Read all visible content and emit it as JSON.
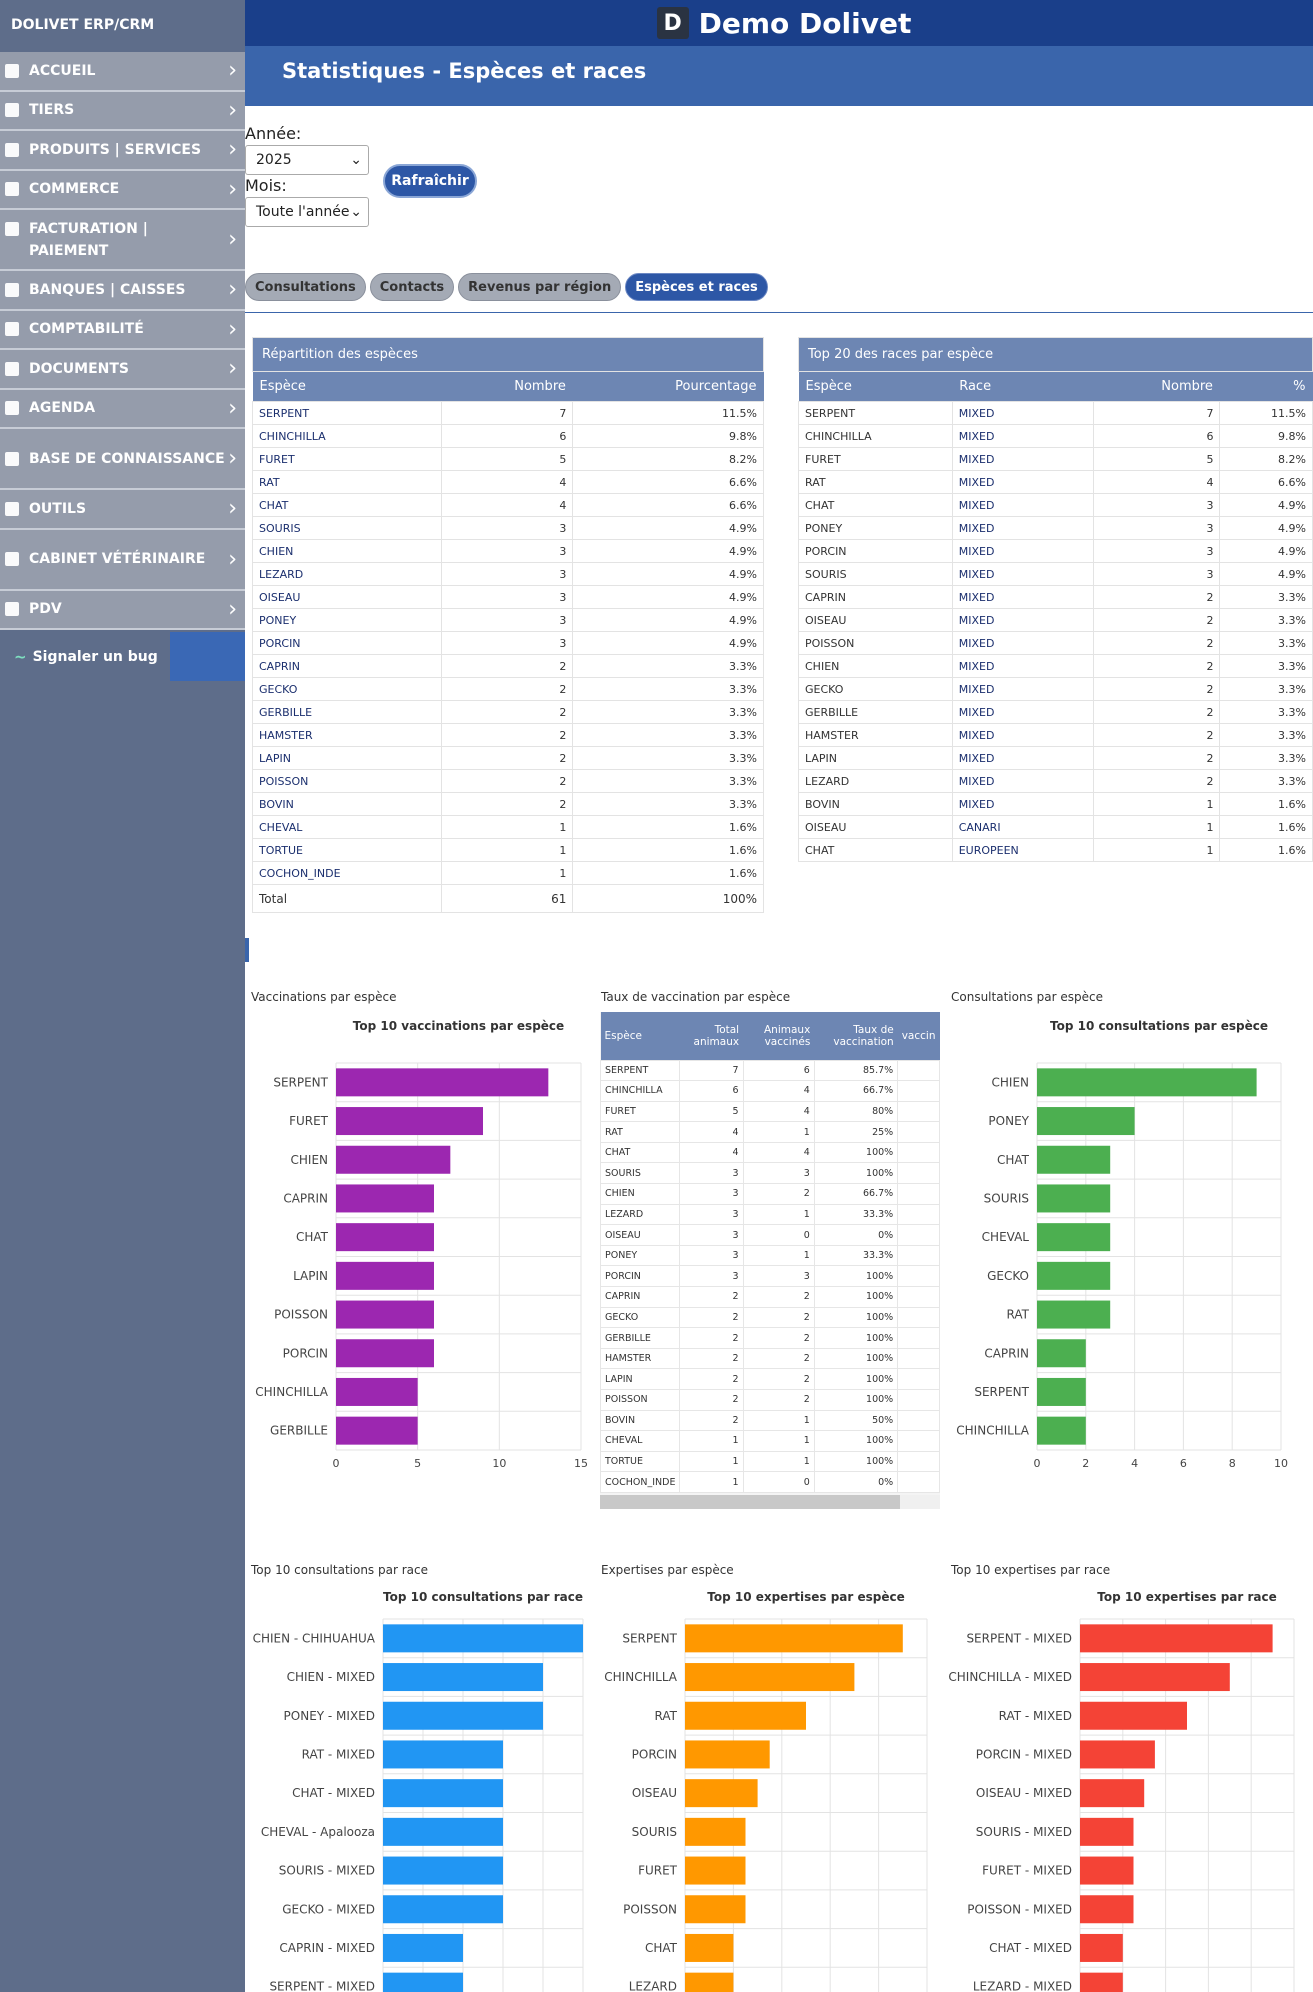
{
  "sidebar": {
    "brand": "DOLIVET ERP/CRM",
    "items": [
      {
        "label": "ACCUEIL",
        "icon": "home-icon"
      },
      {
        "label": "TIERS",
        "icon": "building-icon"
      },
      {
        "label": "PRODUITS | SERVICES",
        "icon": "cube-icon"
      },
      {
        "label": "COMMERCE",
        "icon": "suitcase-icon"
      },
      {
        "label": "FACTURATION | PAIEMENT",
        "icon": "invoice-icon",
        "tall": true
      },
      {
        "label": "BANQUES | CAISSES",
        "icon": "bank-icon"
      },
      {
        "label": "COMPTABILITÉ",
        "icon": "search-dollar-icon"
      },
      {
        "label": "DOCUMENTS",
        "icon": "folder-icon"
      },
      {
        "label": "AGENDA",
        "icon": "calendar-icon"
      },
      {
        "label": "BASE DE CONNAISSANCE",
        "icon": "book-icon",
        "tall": true
      },
      {
        "label": "OUTILS",
        "icon": "tools-icon"
      },
      {
        "label": "CABINET VÉTÉRINAIRE",
        "icon": "dog-icon",
        "tall": true
      },
      {
        "label": "PDV",
        "icon": "cash-register-icon"
      }
    ],
    "bug": "Signaler un bug"
  },
  "header": {
    "app_title": "Demo Dolivet",
    "page_title": "Statistiques - Espèces et races"
  },
  "filters": {
    "year_label": "Année:",
    "year_value": "2025",
    "month_label": "Mois:",
    "month_value": "Toute l'année",
    "refresh": "Rafraîchir"
  },
  "tabs": [
    "Consultations",
    "Contacts",
    "Revenus par région",
    "Espèces et races"
  ],
  "species_table": {
    "caption": "Répartition des espèces",
    "headers": [
      "Espèce",
      "Nombre",
      "Pourcentage"
    ],
    "rows": [
      [
        "SERPENT",
        "7",
        "11.5%"
      ],
      [
        "CHINCHILLA",
        "6",
        "9.8%"
      ],
      [
        "FURET",
        "5",
        "8.2%"
      ],
      [
        "RAT",
        "4",
        "6.6%"
      ],
      [
        "CHAT",
        "4",
        "6.6%"
      ],
      [
        "SOURIS",
        "3",
        "4.9%"
      ],
      [
        "CHIEN",
        "3",
        "4.9%"
      ],
      [
        "LEZARD",
        "3",
        "4.9%"
      ],
      [
        "OISEAU",
        "3",
        "4.9%"
      ],
      [
        "PONEY",
        "3",
        "4.9%"
      ],
      [
        "PORCIN",
        "3",
        "4.9%"
      ],
      [
        "CAPRIN",
        "2",
        "3.3%"
      ],
      [
        "GECKO",
        "2",
        "3.3%"
      ],
      [
        "GERBILLE",
        "2",
        "3.3%"
      ],
      [
        "HAMSTER",
        "2",
        "3.3%"
      ],
      [
        "LAPIN",
        "2",
        "3.3%"
      ],
      [
        "POISSON",
        "2",
        "3.3%"
      ],
      [
        "BOVIN",
        "2",
        "3.3%"
      ],
      [
        "CHEVAL",
        "1",
        "1.6%"
      ],
      [
        "TORTUE",
        "1",
        "1.6%"
      ],
      [
        "COCHON_INDE",
        "1",
        "1.6%"
      ]
    ],
    "total": [
      "Total",
      "61",
      "100%"
    ]
  },
  "races_table": {
    "caption": "Top 20 des races par espèce",
    "headers": [
      "Espèce",
      "Race",
      "Nombre",
      "%"
    ],
    "rows": [
      [
        "SERPENT",
        "MIXED",
        "7",
        "11.5%"
      ],
      [
        "CHINCHILLA",
        "MIXED",
        "6",
        "9.8%"
      ],
      [
        "FURET",
        "MIXED",
        "5",
        "8.2%"
      ],
      [
        "RAT",
        "MIXED",
        "4",
        "6.6%"
      ],
      [
        "CHAT",
        "MIXED",
        "3",
        "4.9%"
      ],
      [
        "PONEY",
        "MIXED",
        "3",
        "4.9%"
      ],
      [
        "PORCIN",
        "MIXED",
        "3",
        "4.9%"
      ],
      [
        "SOURIS",
        "MIXED",
        "3",
        "4.9%"
      ],
      [
        "CAPRIN",
        "MIXED",
        "2",
        "3.3%"
      ],
      [
        "OISEAU",
        "MIXED",
        "2",
        "3.3%"
      ],
      [
        "POISSON",
        "MIXED",
        "2",
        "3.3%"
      ],
      [
        "CHIEN",
        "MIXED",
        "2",
        "3.3%"
      ],
      [
        "GECKO",
        "MIXED",
        "2",
        "3.3%"
      ],
      [
        "GERBILLE",
        "MIXED",
        "2",
        "3.3%"
      ],
      [
        "HAMSTER",
        "MIXED",
        "2",
        "3.3%"
      ],
      [
        "LAPIN",
        "MIXED",
        "2",
        "3.3%"
      ],
      [
        "LEZARD",
        "MIXED",
        "2",
        "3.3%"
      ],
      [
        "BOVIN",
        "MIXED",
        "1",
        "1.6%"
      ],
      [
        "OISEAU",
        "CANARI",
        "1",
        "1.6%"
      ],
      [
        "CHAT",
        "EUROPEEN",
        "1",
        "1.6%"
      ]
    ]
  },
  "panels": {
    "vacc": "Vaccinations par espèce",
    "vrate": "Taux de vaccination par espèce",
    "consult": "Consultations par espèce",
    "consult_race": "Top 10 consultations par race",
    "exp_species": "Expertises par espèce",
    "exp_race": "Top 10 expertises par race"
  },
  "vacc_table": {
    "headers": [
      "Espèce",
      "Total animaux",
      "Animaux vaccinés",
      "Taux de vaccination",
      "vaccin"
    ],
    "rows": [
      [
        "SERPENT",
        "7",
        "6",
        "85.7%"
      ],
      [
        "CHINCHILLA",
        "6",
        "4",
        "66.7%"
      ],
      [
        "FURET",
        "5",
        "4",
        "80%"
      ],
      [
        "RAT",
        "4",
        "1",
        "25%"
      ],
      [
        "CHAT",
        "4",
        "4",
        "100%"
      ],
      [
        "SOURIS",
        "3",
        "3",
        "100%"
      ],
      [
        "CHIEN",
        "3",
        "2",
        "66.7%"
      ],
      [
        "LEZARD",
        "3",
        "1",
        "33.3%"
      ],
      [
        "OISEAU",
        "3",
        "0",
        "0%"
      ],
      [
        "PONEY",
        "3",
        "1",
        "33.3%"
      ],
      [
        "PORCIN",
        "3",
        "3",
        "100%"
      ],
      [
        "CAPRIN",
        "2",
        "2",
        "100%"
      ],
      [
        "GECKO",
        "2",
        "2",
        "100%"
      ],
      [
        "GERBILLE",
        "2",
        "2",
        "100%"
      ],
      [
        "HAMSTER",
        "2",
        "2",
        "100%"
      ],
      [
        "LAPIN",
        "2",
        "2",
        "100%"
      ],
      [
        "POISSON",
        "2",
        "2",
        "100%"
      ],
      [
        "BOVIN",
        "2",
        "1",
        "50%"
      ],
      [
        "CHEVAL",
        "1",
        "1",
        "100%"
      ],
      [
        "TORTUE",
        "1",
        "1",
        "100%"
      ],
      [
        "COCHON_INDE",
        "1",
        "0",
        "0%"
      ]
    ]
  },
  "chart_data": [
    {
      "type": "bar",
      "orientation": "horizontal",
      "title": "Top 10 vaccinations par espèce",
      "color": "#9c27b0",
      "categories": [
        "SERPENT",
        "FURET",
        "CHIEN",
        "CAPRIN",
        "CHAT",
        "LAPIN",
        "POISSON",
        "PORCIN",
        "CHINCHILLA",
        "GERBILLE"
      ],
      "values": [
        13,
        9,
        7,
        6,
        6,
        6,
        6,
        6,
        5,
        5
      ],
      "xlim": [
        0,
        15
      ],
      "ticks": [
        0,
        5,
        10,
        15
      ]
    },
    {
      "type": "bar",
      "orientation": "horizontal",
      "title": "Top 10 consultations par espèce",
      "color": "#4caf50",
      "categories": [
        "CHIEN",
        "PONEY",
        "CHAT",
        "SOURIS",
        "CHEVAL",
        "GECKO",
        "RAT",
        "CAPRIN",
        "SERPENT",
        "CHINCHILLA"
      ],
      "values": [
        9,
        4,
        3,
        3,
        3,
        3,
        3,
        2,
        2,
        2
      ],
      "xlim": [
        0,
        10
      ],
      "ticks": [
        0,
        2,
        4,
        6,
        8,
        10
      ]
    },
    {
      "type": "bar",
      "orientation": "horizontal",
      "title": "Top 10 consultations par race",
      "color": "#2196f3",
      "categories": [
        "CHIEN - CHIHUAHUA",
        "CHIEN - MIXED",
        "PONEY - MIXED",
        "RAT - MIXED",
        "CHAT - MIXED",
        "CHEVAL - Apalooza",
        "SOURIS - MIXED",
        "GECKO - MIXED",
        "CAPRIN - MIXED",
        "SERPENT - MIXED"
      ],
      "values": [
        5,
        4,
        4,
        3,
        3,
        3,
        3,
        3,
        2,
        2
      ],
      "xlim": [
        0,
        5
      ]
    },
    {
      "type": "bar",
      "orientation": "horizontal",
      "title": "Top 10 expertises par espèce",
      "color": "#ff9800",
      "categories": [
        "SERPENT",
        "CHINCHILLA",
        "RAT",
        "PORCIN",
        "OISEAU",
        "SOURIS",
        "FURET",
        "POISSON",
        "CHAT",
        "LEZARD"
      ],
      "values": [
        18,
        14,
        10,
        7,
        6,
        5,
        5,
        5,
        4,
        4
      ],
      "xlim": [
        0,
        20
      ]
    },
    {
      "type": "bar",
      "orientation": "horizontal",
      "title": "Top 10 expertises par race",
      "color": "#f44336",
      "categories": [
        "SERPENT - MIXED",
        "CHINCHILLA - MIXED",
        "RAT - MIXED",
        "PORCIN - MIXED",
        "OISEAU - MIXED",
        "SOURIS - MIXED",
        "FURET - MIXED",
        "POISSON - MIXED",
        "CHAT - MIXED",
        "LEZARD - MIXED"
      ],
      "values": [
        18,
        14,
        10,
        7,
        6,
        5,
        5,
        5,
        4,
        4
      ],
      "xlim": [
        0,
        20
      ]
    }
  ]
}
